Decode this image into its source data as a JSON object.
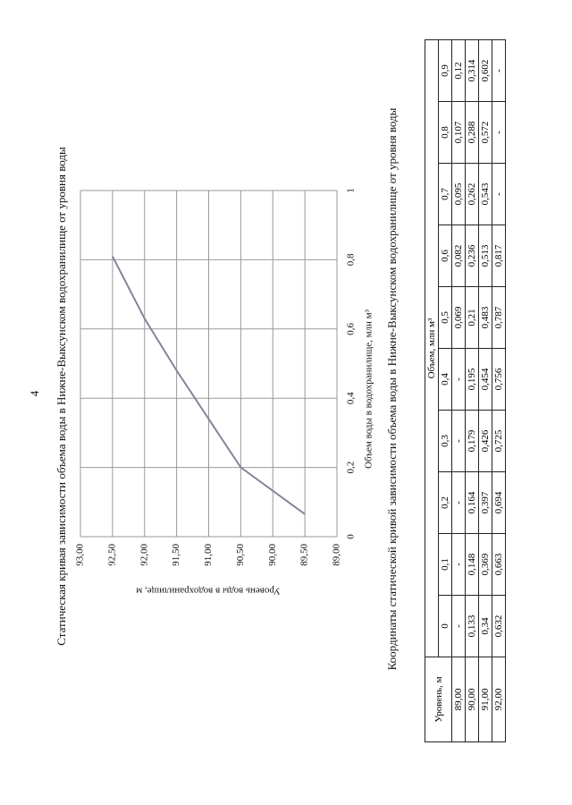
{
  "page_number": "4",
  "chart_data": {
    "type": "line",
    "title": "Статическая кривая зависимости объема воды в Нижне-Выксунском водохранилище от уровня воды",
    "x_label": "Объем воды в водохранилище, млн м³",
    "y_label": "Уровень воды в водохранилище, м",
    "x": [
      0.065,
      0.2,
      0.34,
      0.48,
      0.63,
      0.81
    ],
    "series": [
      {
        "color": "#8a8296",
        "values": [
          89.5,
          90.5,
          91.0,
          91.5,
          92.0,
          92.5
        ]
      }
    ],
    "xlim": [
      0,
      1
    ],
    "ylim": [
      89,
      93
    ],
    "xticks": [
      0,
      {
        "value": 0.2,
        "label": "0,2"
      },
      {
        "value": 0.4,
        "label": "0,4"
      },
      {
        "value": 0.6,
        "label": "0,6"
      },
      {
        "value": 0.8,
        "label": "0,8"
      },
      1
    ],
    "yticks": [
      {
        "value": 89,
        "label": "89,00"
      },
      {
        "value": 89.5,
        "label": "89,50"
      },
      {
        "value": 90,
        "label": "90,00"
      },
      {
        "value": 90.5,
        "label": "90,50"
      },
      {
        "value": 91,
        "label": "91,00"
      },
      {
        "value": 91.5,
        "label": "91,50"
      },
      {
        "value": 92,
        "label": "92,00"
      },
      {
        "value": 92.5,
        "label": "92,50"
      },
      {
        "value": 93,
        "label": "93,00"
      }
    ],
    "grid": true
  },
  "table": {
    "title": "Координаты статической кривой зависимости объема воды в Нижне-Выксунском водохранилище от уровня воды",
    "level_header": "Уровень, м",
    "volume_header": "Объем, млн м³",
    "columns": [
      "0",
      "0,1",
      "0,2",
      "0,3",
      "0,4",
      "0,5",
      "0,6",
      "0,7",
      "0,8",
      "0,9"
    ],
    "rows": [
      [
        "89,00",
        "-",
        "-",
        "-",
        "-",
        "-",
        "0,069",
        "0,082",
        "0,095",
        "0,107",
        "0,12"
      ],
      [
        "90,00",
        "0,133",
        "0,148",
        "0,164",
        "0,179",
        "0,195",
        "0,21",
        "0,236",
        "0,262",
        "0,288",
        "0,314"
      ],
      [
        "91,00",
        "0,34",
        "0,369",
        "0,397",
        "0,426",
        "0,454",
        "0,483",
        "0,513",
        "0,543",
        "0,572",
        "0,602"
      ],
      [
        "92,00",
        "0,632",
        "0,663",
        "0,694",
        "0,725",
        "0,756",
        "0,787",
        "0,817",
        "-",
        "-",
        "-"
      ]
    ]
  }
}
